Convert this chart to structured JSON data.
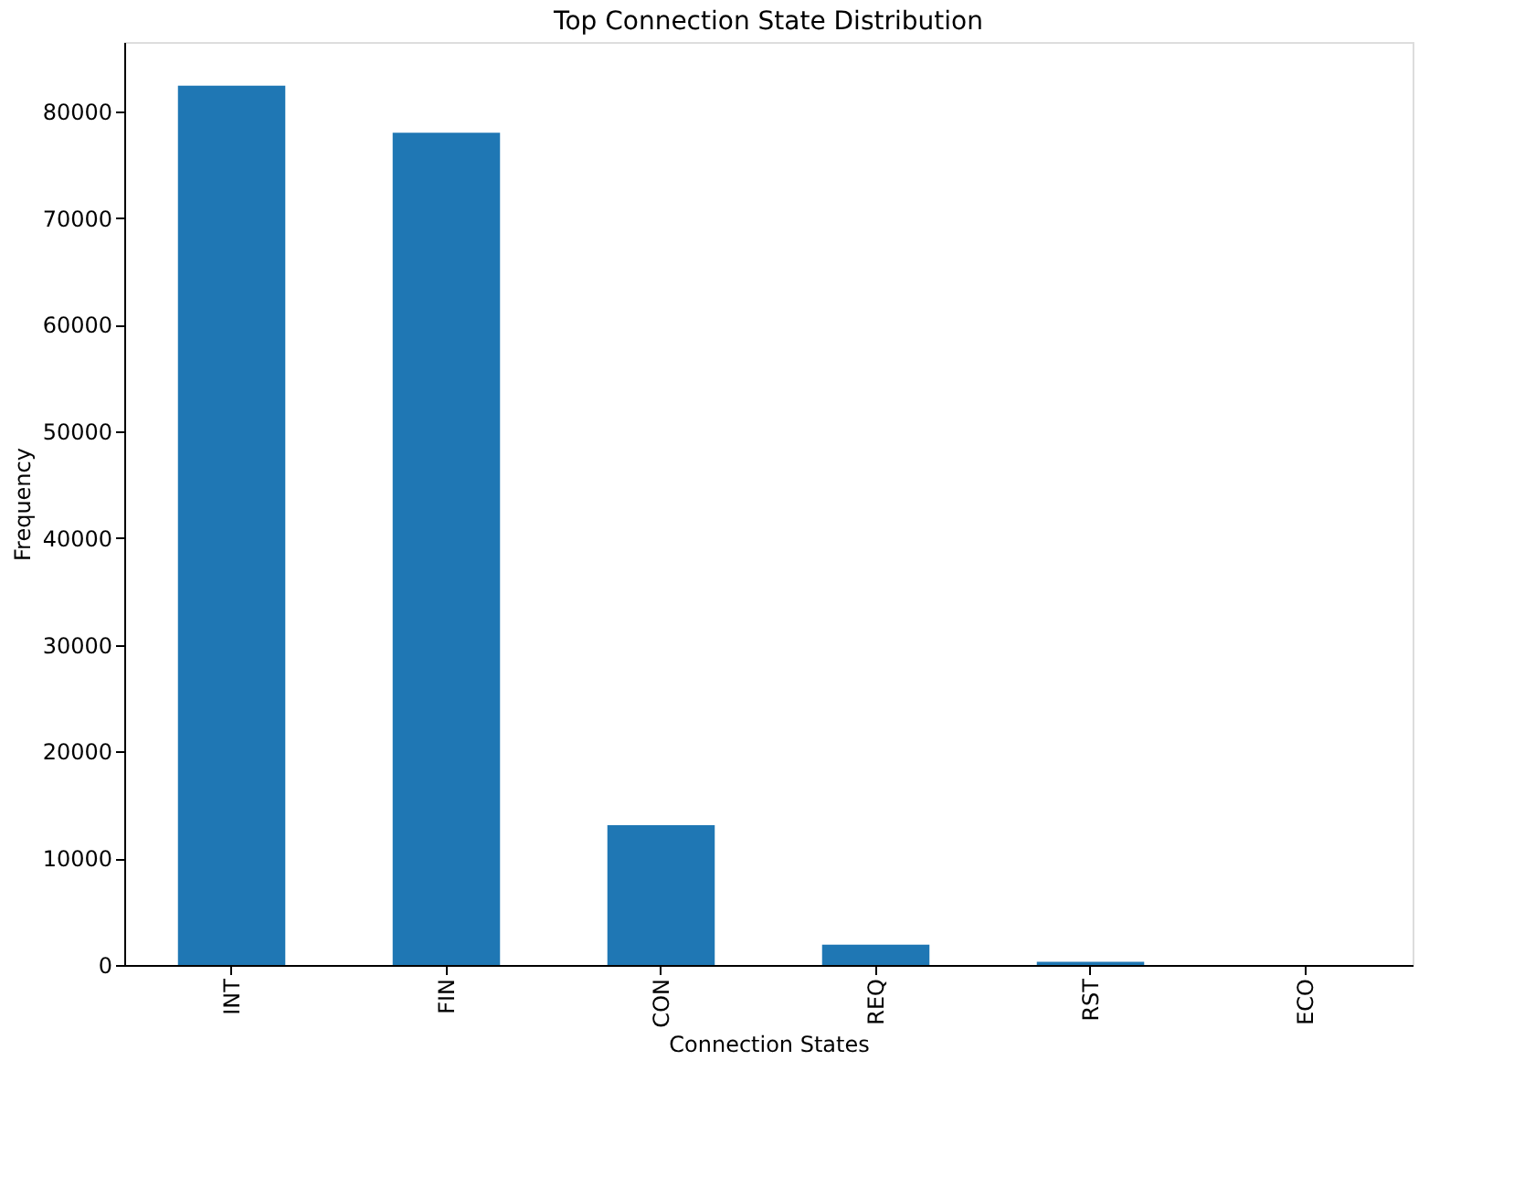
{
  "chart_data": {
    "type": "bar",
    "title": "Top Connection State Distribution",
    "xlabel": "Connection States",
    "ylabel": "Frequency",
    "categories": [
      "INT",
      "FIN",
      "CON",
      "REQ",
      "RST",
      "ECO"
    ],
    "values": [
      82400,
      78000,
      13100,
      1900,
      300,
      0
    ],
    "color": "#1f77b4",
    "ylim": [
      0,
      86500
    ],
    "yticks": [
      0,
      10000,
      20000,
      30000,
      40000,
      50000,
      60000,
      70000,
      80000
    ],
    "grid": false
  }
}
